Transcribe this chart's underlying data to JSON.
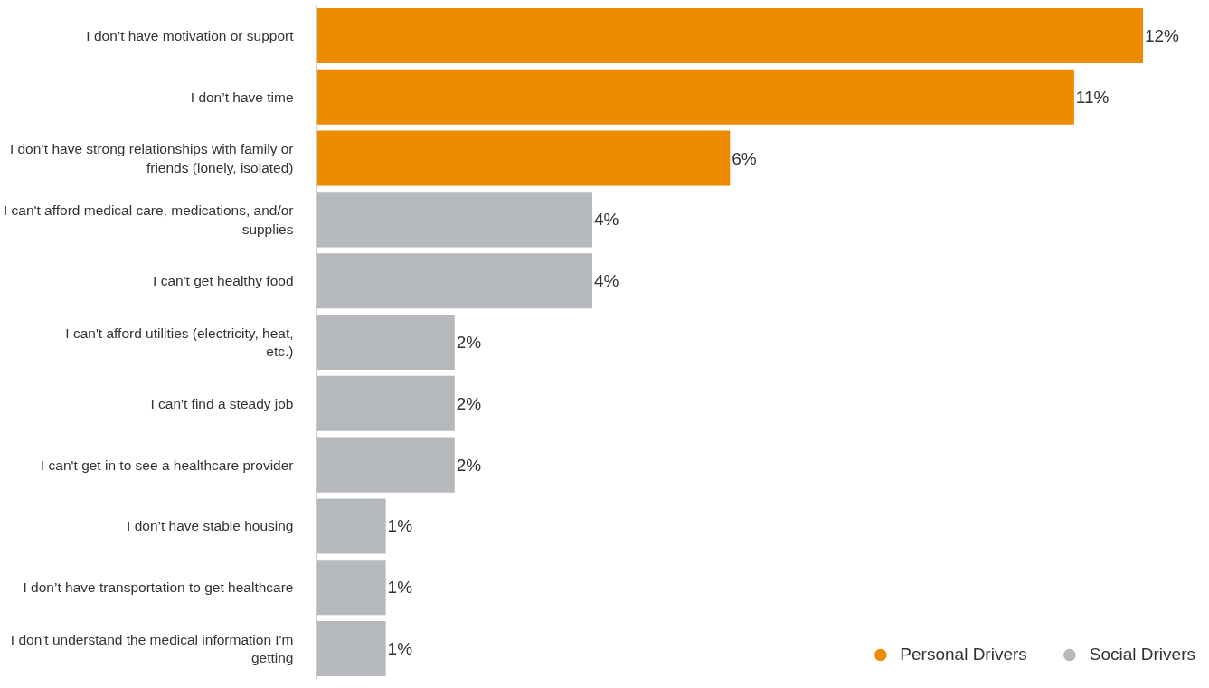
{
  "chart_data": {
    "type": "bar",
    "orientation": "horizontal",
    "categories": [
      "I don’t have motivation or support",
      "I don’t have time",
      "I don’t have strong relationships with family or friends (lonely, isolated)",
      "I can't afford medical care, medications, and/or supplies",
      "I can't get healthy food",
      "I can't afford utilities (electricity, heat, etc.)",
      "I can't find a steady job",
      "I can't get in to see a healthcare provider",
      "I don’t have stable housing",
      "I don’t have transportation to get healthcare",
      "I don't understand the medical information I'm getting"
    ],
    "series": [
      {
        "name": "Personal Drivers",
        "color": "#ec8b00",
        "values": [
          12,
          11,
          6,
          null,
          null,
          null,
          null,
          null,
          null,
          null,
          null
        ],
        "value_labels": [
          "12%",
          "11%",
          "6%",
          null,
          null,
          null,
          null,
          null,
          null,
          null,
          null
        ]
      },
      {
        "name": "Social Drivers",
        "color": "#b5b9bd",
        "values": [
          null,
          null,
          null,
          4,
          4,
          2,
          2,
          2,
          1,
          1,
          1
        ],
        "value_labels": [
          null,
          null,
          null,
          "4%",
          "4%",
          "2%",
          "2%",
          "2%",
          "1%",
          "1%",
          "1%"
        ]
      }
    ],
    "legend": "bottom right",
    "grid": false,
    "tick_labels": "y"
  }
}
